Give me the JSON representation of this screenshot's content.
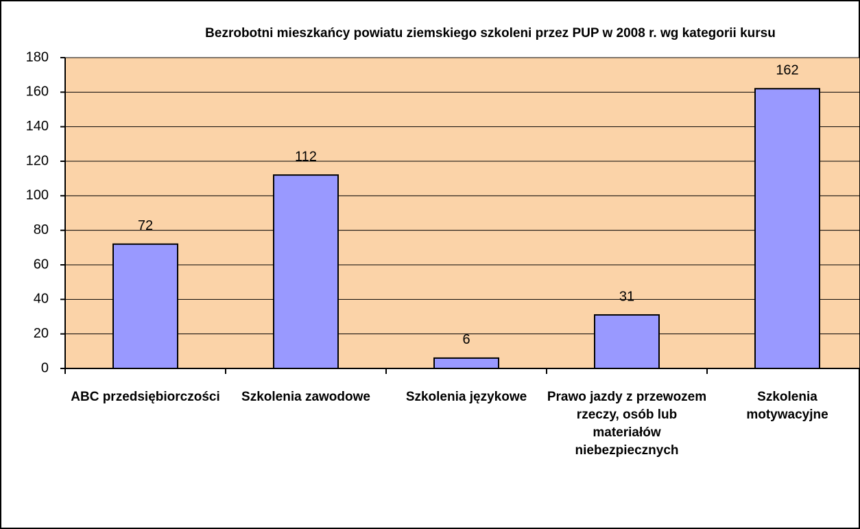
{
  "chart_data": {
    "type": "bar",
    "title": "Bezrobotni mieszkańcy powiatu ziemskiego szkoleni przez PUP w 2008 r. wg kategorii kursu",
    "categories": [
      "ABC przedsiębiorczości",
      "Szkolenia zawodowe",
      "Szkolenia językowe",
      "Prawo jazdy z przewozem rzeczy, osób lub materiałów niebezpiecznych",
      "Szkolenia motywacyjne"
    ],
    "values": [
      72,
      112,
      6,
      31,
      162
    ],
    "color": "#9999ff",
    "ylim": [
      0,
      180
    ],
    "yticks": [
      0,
      20,
      40,
      60,
      80,
      100,
      120,
      140,
      160,
      180
    ],
    "grid": true
  }
}
